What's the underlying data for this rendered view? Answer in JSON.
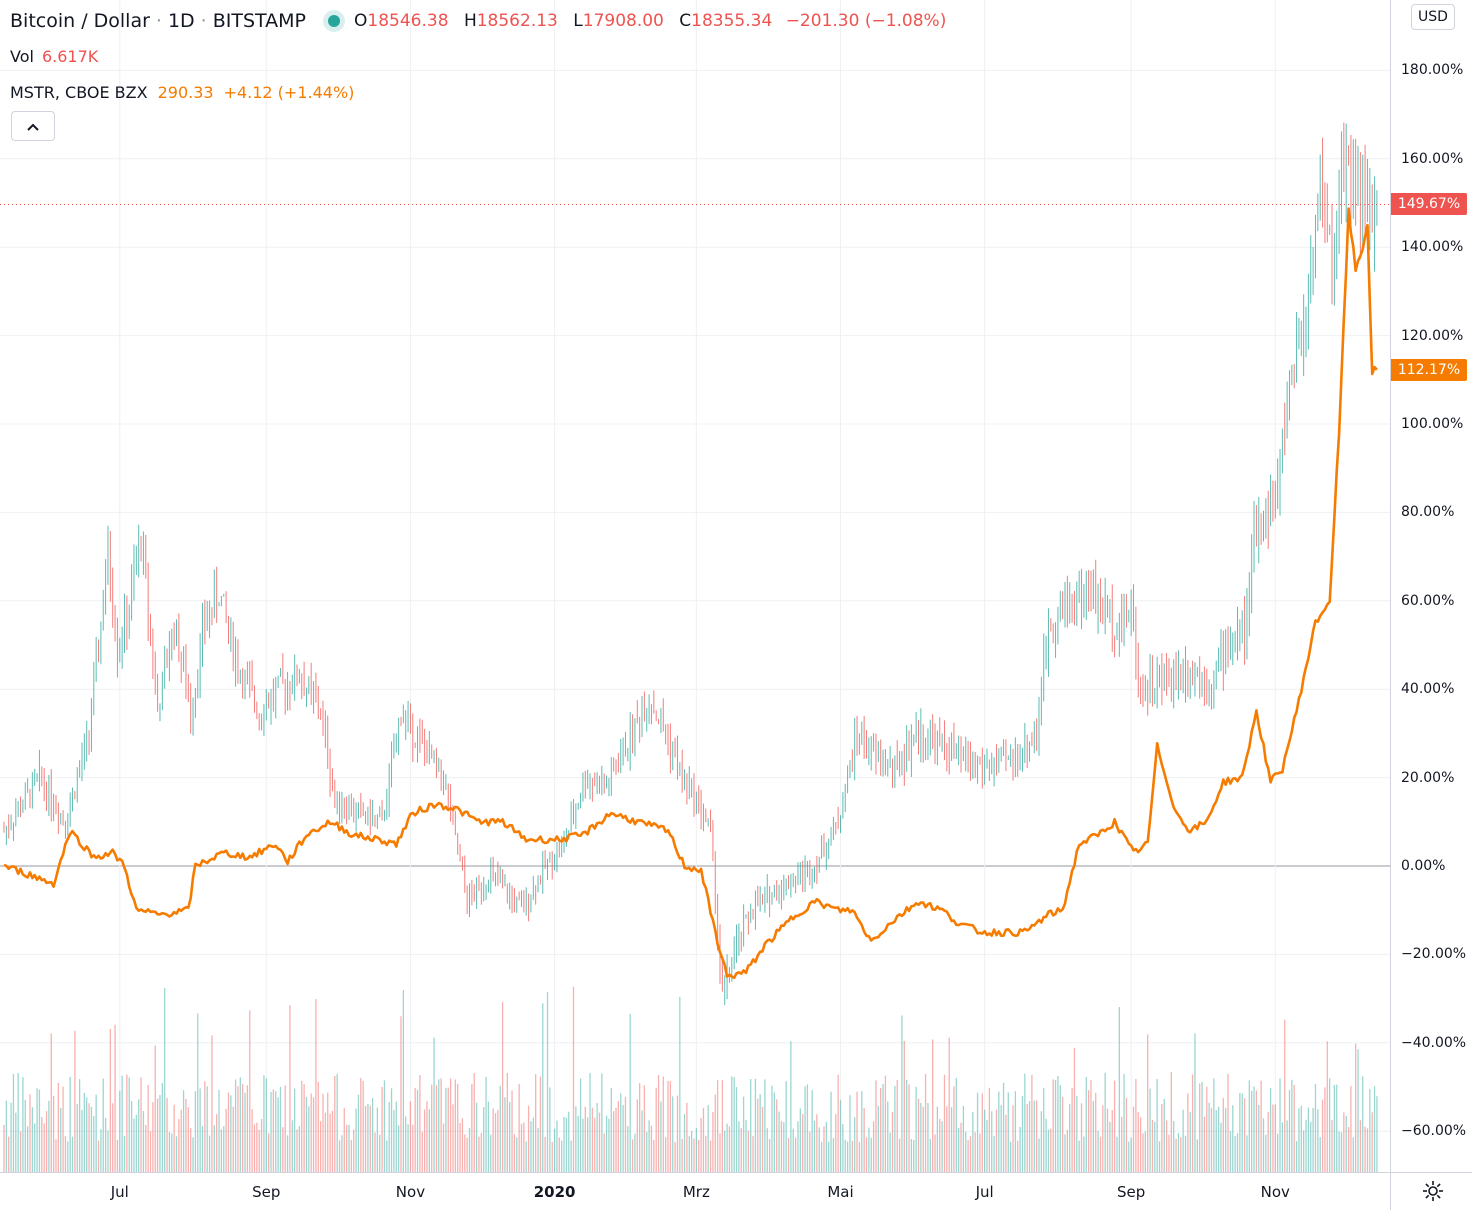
{
  "legend": {
    "symbol": "Bitcoin / Dollar",
    "interval": "1D",
    "exchange": "BITSTAMP",
    "sep": "·",
    "o_key": "O",
    "o_val": "18546.38",
    "h_key": "H",
    "h_val": "18562.13",
    "l_key": "L",
    "l_val": "17908.00",
    "c_key": "C",
    "c_val": "18355.34",
    "change": "−201.30 (−1.08%)",
    "vol_key": "Vol",
    "vol_val": "6.617K",
    "compare_symbol": "MSTR, CBOE BZX",
    "compare_price": "290.33",
    "compare_change": "+4.12 (+1.44%)",
    "status_icon": "market-open-dot-icon",
    "collapse_icon": "chevron-up-icon"
  },
  "colors": {
    "up": "#26a69a",
    "down": "#ef5350",
    "compare_line": "#f57c00",
    "grid": "#eef0f3",
    "zero_line": "#9598a1"
  },
  "axis": {
    "currency_button": "USD",
    "settings_icon": "gear-icon"
  },
  "chart_data": {
    "type": "line",
    "title": "",
    "xlabel": "",
    "ylabel": "",
    "y_unit": "%",
    "ylim": [
      -67,
      188
    ],
    "y_ticks": [
      "180.00%",
      "160.00%",
      "140.00%",
      "120.00%",
      "100.00%",
      "80.00%",
      "60.00%",
      "40.00%",
      "20.00%",
      "0.00%",
      "−20.00%",
      "−40.00%",
      "−60.00%"
    ],
    "x_ticks": [
      {
        "label": "Jul",
        "date": "2019-07-01",
        "bold": false
      },
      {
        "label": "Sep",
        "date": "2019-09-01",
        "bold": false
      },
      {
        "label": "Nov",
        "date": "2019-11-01",
        "bold": false
      },
      {
        "label": "2020",
        "date": "2020-01-01",
        "bold": true
      },
      {
        "label": "Mrz",
        "date": "2020-03-01",
        "bold": false
      },
      {
        "label": "Mai",
        "date": "2020-05-01",
        "bold": false
      },
      {
        "label": "Jul",
        "date": "2020-07-01",
        "bold": false
      },
      {
        "label": "Sep",
        "date": "2020-09-01",
        "bold": false
      },
      {
        "label": "Nov",
        "date": "2020-11-01",
        "bold": false
      }
    ],
    "xlim": [
      "2019-05-13",
      "2020-12-31"
    ],
    "grid": true,
    "price_labels": {
      "btc_last": "149.67%",
      "mstr_last": "112.17%"
    },
    "btc_last_value": 149.67,
    "mstr_last_value": 112.17,
    "series": [
      {
        "id": "btc",
        "style": "candles",
        "points": [
          [
            "2019-05-13",
            8
          ],
          [
            "2019-05-28",
            20
          ],
          [
            "2019-06-08",
            10
          ],
          [
            "2019-06-18",
            30
          ],
          [
            "2019-06-26",
            70
          ],
          [
            "2019-06-30",
            50
          ],
          [
            "2019-07-04",
            55
          ],
          [
            "2019-07-10",
            75
          ],
          [
            "2019-07-17",
            35
          ],
          [
            "2019-07-24",
            55
          ],
          [
            "2019-07-31",
            35
          ],
          [
            "2019-08-06",
            55
          ],
          [
            "2019-08-12",
            62
          ],
          [
            "2019-08-20",
            45
          ],
          [
            "2019-08-29",
            35
          ],
          [
            "2019-09-06",
            40
          ],
          [
            "2019-09-15",
            43
          ],
          [
            "2019-09-24",
            35
          ],
          [
            "2019-09-30",
            15
          ],
          [
            "2019-10-10",
            12
          ],
          [
            "2019-10-20",
            10
          ],
          [
            "2019-10-28",
            35
          ],
          [
            "2019-11-05",
            28
          ],
          [
            "2019-11-15",
            20
          ],
          [
            "2019-11-25",
            -8
          ],
          [
            "2019-12-05",
            -2
          ],
          [
            "2019-12-18",
            -10
          ],
          [
            "2019-12-28",
            0
          ],
          [
            "2020-01-05",
            5
          ],
          [
            "2020-01-14",
            20
          ],
          [
            "2020-01-23",
            18
          ],
          [
            "2020-02-01",
            28
          ],
          [
            "2020-02-10",
            38
          ],
          [
            "2020-02-17",
            30
          ],
          [
            "2020-02-24",
            20
          ],
          [
            "2020-03-01",
            15
          ],
          [
            "2020-03-07",
            8
          ],
          [
            "2020-03-12",
            -30
          ],
          [
            "2020-03-17",
            -20
          ],
          [
            "2020-03-24",
            -10
          ],
          [
            "2020-04-05",
            -5
          ],
          [
            "2020-04-20",
            0
          ],
          [
            "2020-04-30",
            10
          ],
          [
            "2020-05-08",
            30
          ],
          [
            "2020-05-15",
            25
          ],
          [
            "2020-05-25",
            22
          ],
          [
            "2020-06-02",
            30
          ],
          [
            "2020-06-10",
            28
          ],
          [
            "2020-06-20",
            25
          ],
          [
            "2020-07-01",
            22
          ],
          [
            "2020-07-15",
            25
          ],
          [
            "2020-07-23",
            30
          ],
          [
            "2020-07-28",
            55
          ],
          [
            "2020-08-05",
            60
          ],
          [
            "2020-08-15",
            62
          ],
          [
            "2020-08-25",
            55
          ],
          [
            "2020-09-01",
            58
          ],
          [
            "2020-09-05",
            40
          ],
          [
            "2020-09-15",
            42
          ],
          [
            "2020-09-25",
            45
          ],
          [
            "2020-10-05",
            42
          ],
          [
            "2020-10-12",
            50
          ],
          [
            "2020-10-20",
            55
          ],
          [
            "2020-10-23",
            75
          ],
          [
            "2020-11-02",
            85
          ],
          [
            "2020-11-07",
            110
          ],
          [
            "2020-11-14",
            125
          ],
          [
            "2020-11-20",
            155
          ],
          [
            "2020-11-25",
            135
          ],
          [
            "2020-11-28",
            150
          ],
          [
            "2020-12-01",
            162
          ],
          [
            "2020-12-06",
            155
          ],
          [
            "2020-12-11",
            145
          ],
          [
            "2020-12-14",
            149.67
          ]
        ]
      },
      {
        "id": "mstr",
        "style": "line",
        "points": [
          [
            "2019-05-13",
            0
          ],
          [
            "2019-05-24",
            -2
          ],
          [
            "2019-06-03",
            -4
          ],
          [
            "2019-06-10",
            8
          ],
          [
            "2019-06-20",
            2
          ],
          [
            "2019-06-28",
            3
          ],
          [
            "2019-07-03",
            0
          ],
          [
            "2019-07-08",
            -10
          ],
          [
            "2019-07-18",
            -11
          ],
          [
            "2019-07-30",
            -10
          ],
          [
            "2019-08-02",
            0
          ],
          [
            "2019-08-14",
            3
          ],
          [
            "2019-08-25",
            2
          ],
          [
            "2019-09-05",
            5
          ],
          [
            "2019-09-10",
            1
          ],
          [
            "2019-09-18",
            7
          ],
          [
            "2019-09-28",
            10
          ],
          [
            "2019-10-08",
            7
          ],
          [
            "2019-10-18",
            6
          ],
          [
            "2019-10-26",
            5
          ],
          [
            "2019-11-02",
            12
          ],
          [
            "2019-11-12",
            14
          ],
          [
            "2019-11-20",
            13
          ],
          [
            "2019-11-30",
            10
          ],
          [
            "2019-12-10",
            10
          ],
          [
            "2019-12-20",
            6
          ],
          [
            "2020-01-03",
            6
          ],
          [
            "2020-01-13",
            7
          ],
          [
            "2020-01-25",
            12
          ],
          [
            "2020-02-05",
            10
          ],
          [
            "2020-02-18",
            8
          ],
          [
            "2020-02-25",
            0
          ],
          [
            "2020-03-03",
            -1
          ],
          [
            "2020-03-09",
            -15
          ],
          [
            "2020-03-14",
            -25
          ],
          [
            "2020-03-22",
            -24
          ],
          [
            "2020-03-30",
            -18
          ],
          [
            "2020-04-10",
            -12
          ],
          [
            "2020-04-20",
            -8
          ],
          [
            "2020-04-30",
            -10
          ],
          [
            "2020-05-06",
            -10
          ],
          [
            "2020-05-14",
            -17
          ],
          [
            "2020-05-24",
            -12
          ],
          [
            "2020-06-03",
            -8
          ],
          [
            "2020-06-13",
            -10
          ],
          [
            "2020-06-20",
            -13
          ],
          [
            "2020-06-30",
            -15
          ],
          [
            "2020-07-10",
            -15
          ],
          [
            "2020-07-18",
            -15
          ],
          [
            "2020-07-28",
            -11
          ],
          [
            "2020-08-03",
            -10
          ],
          [
            "2020-08-10",
            5
          ],
          [
            "2020-08-18",
            7
          ],
          [
            "2020-08-25",
            10
          ],
          [
            "2020-09-02",
            3
          ],
          [
            "2020-09-08",
            5
          ],
          [
            "2020-09-12",
            27
          ],
          [
            "2020-09-20",
            12
          ],
          [
            "2020-09-26",
            8
          ],
          [
            "2020-10-03",
            10
          ],
          [
            "2020-10-10",
            19
          ],
          [
            "2020-10-18",
            20
          ],
          [
            "2020-10-24",
            35
          ],
          [
            "2020-10-30",
            19
          ],
          [
            "2020-11-04",
            22
          ],
          [
            "2020-11-10",
            35
          ],
          [
            "2020-11-18",
            55
          ],
          [
            "2020-11-24",
            60
          ],
          [
            "2020-11-28",
            98
          ],
          [
            "2020-12-02",
            148
          ],
          [
            "2020-12-05",
            135
          ],
          [
            "2020-12-08",
            140
          ],
          [
            "2020-12-10",
            145
          ],
          [
            "2020-12-12",
            112
          ],
          [
            "2020-12-14",
            112.17
          ]
        ]
      }
    ]
  }
}
